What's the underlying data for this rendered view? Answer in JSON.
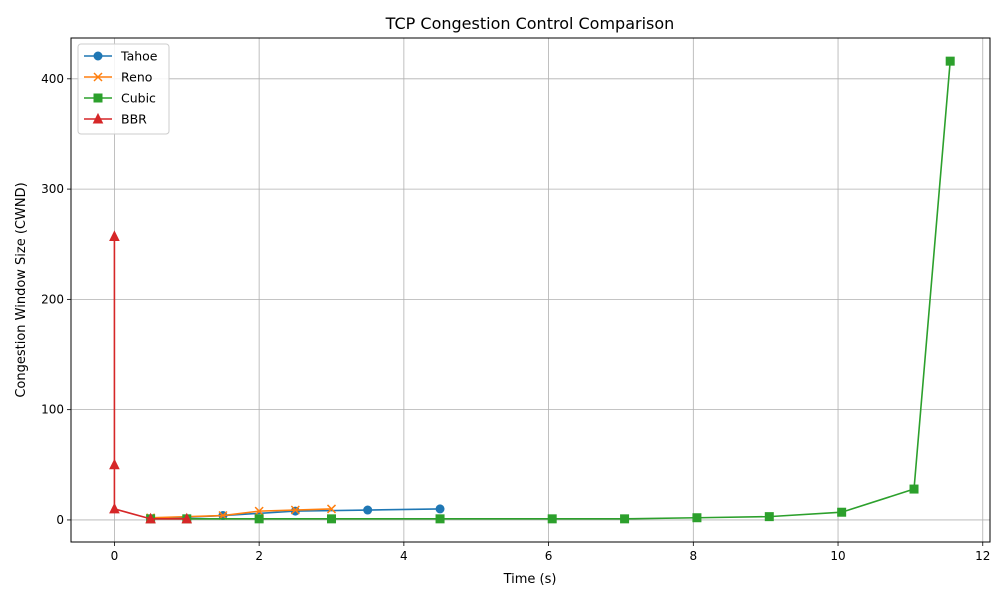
{
  "chart_data": {
    "type": "line",
    "title": "TCP Congestion Control Comparison",
    "xlabel": "Time (s)",
    "ylabel": "Congestion Window Size (CWND)",
    "xlim": [
      -0.6,
      12.1
    ],
    "ylim": [
      -20,
      437
    ],
    "x_ticks": [
      0,
      2,
      4,
      6,
      8,
      10,
      12
    ],
    "y_ticks": [
      0,
      100,
      200,
      300,
      400
    ],
    "grid": true,
    "legend_position": "top-left",
    "series": [
      {
        "name": "Tahoe",
        "color": "#1f77b4",
        "marker": "circle",
        "x": [
          0.5,
          1.5,
          2.5,
          3.5,
          4.5
        ],
        "y": [
          1,
          4,
          8,
          9,
          10
        ]
      },
      {
        "name": "Reno",
        "color": "#ff7f0e",
        "marker": "x",
        "x": [
          0.5,
          1.5,
          2.0,
          2.5,
          3.0
        ],
        "y": [
          2,
          4,
          8,
          9,
          10
        ]
      },
      {
        "name": "Cubic",
        "color": "#2ca02c",
        "marker": "square",
        "x": [
          0.5,
          1.0,
          2.0,
          3.0,
          4.5,
          6.05,
          7.05,
          8.05,
          9.05,
          10.05,
          11.05,
          11.55
        ],
        "y": [
          1,
          1,
          1,
          1,
          1,
          1,
          1,
          2,
          3,
          7,
          28,
          416
        ]
      },
      {
        "name": "BBR",
        "color": "#d62728",
        "marker": "triangle",
        "x": [
          0,
          0,
          0,
          0.5,
          1.0
        ],
        "y": [
          257,
          50,
          10,
          1,
          1
        ]
      }
    ]
  }
}
